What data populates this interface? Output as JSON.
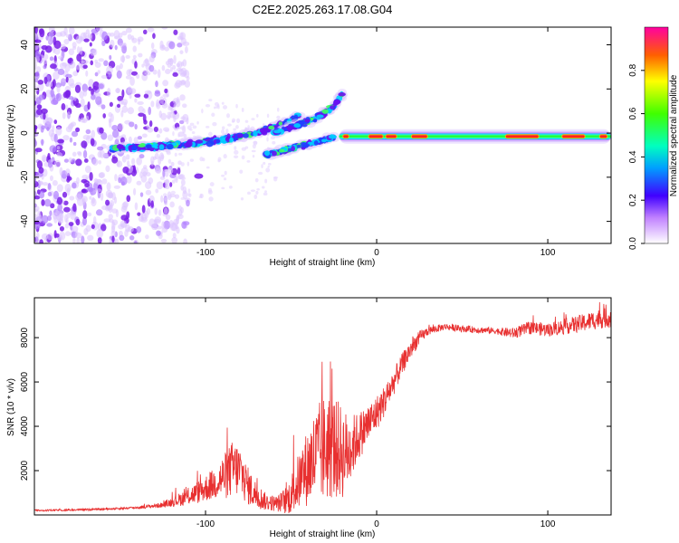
{
  "title": "C2E2.2025.263.17.08.G04",
  "chart_data": [
    {
      "type": "heatmap",
      "title": "C2E2.2025.263.17.08.G04",
      "xlabel": "Height of straight line (km)",
      "ylabel": "Frequency (Hz)",
      "xlim": [
        -200,
        137
      ],
      "ylim": [
        -50,
        48
      ],
      "xticks": [
        -100,
        0,
        100
      ],
      "yticks": [
        -40,
        -20,
        0,
        20,
        40
      ],
      "colorbar": {
        "label": "Normalized spectral amplitude",
        "range": [
          0,
          1
        ],
        "ticks": [
          0.0,
          0.2,
          0.4,
          0.6,
          0.8
        ]
      },
      "features": [
        {
          "name": "noise-cloud",
          "x_range": [
            -200,
            -125
          ],
          "y_range": [
            -50,
            48
          ]
        },
        {
          "name": "main-ridge",
          "x": [
            -155,
            -130,
            -110,
            -90,
            -70,
            -55,
            -45
          ],
          "y": [
            -7,
            -6,
            -5,
            -3,
            0,
            4,
            8
          ]
        },
        {
          "name": "upper-branch",
          "x": [
            -60,
            -45,
            -35,
            -25,
            -20
          ],
          "y": [
            0,
            4,
            7,
            12,
            18
          ]
        },
        {
          "name": "lower-branch",
          "x": [
            -65,
            -55,
            -45,
            -35,
            -25
          ],
          "y": [
            -10,
            -8,
            -6,
            -4,
            -2
          ]
        },
        {
          "name": "carrier-line",
          "x_range": [
            -22,
            137
          ],
          "y": -1.5
        }
      ]
    },
    {
      "type": "line",
      "xlabel": "Height of straight line (km)",
      "ylabel": "SNR (10 * v/v)",
      "xlim": [
        -200,
        137
      ],
      "ylim": [
        0,
        9800
      ],
      "xticks": [
        -100,
        0,
        100
      ],
      "yticks": [
        2000,
        4000,
        6000,
        8000
      ],
      "series": [
        {
          "name": "SNR",
          "color": "#e83030",
          "x": [
            -200,
            -180,
            -160,
            -140,
            -125,
            -115,
            -105,
            -95,
            -88,
            -84,
            -80,
            -76,
            -72,
            -65,
            -58,
            -52,
            -48,
            -44,
            -40,
            -36,
            -32,
            -28,
            -24,
            -20,
            -16,
            -12,
            -8,
            -4,
            0,
            5,
            10,
            15,
            20,
            25,
            30,
            40,
            50,
            60,
            70,
            80,
            90,
            100,
            110,
            120,
            130,
            137
          ],
          "y": [
            200,
            220,
            260,
            330,
            450,
            700,
            1000,
            1400,
            1800,
            2100,
            2000,
            1400,
            1000,
            600,
            500,
            700,
            1200,
            1700,
            2200,
            2600,
            2900,
            3100,
            3000,
            2800,
            2900,
            3400,
            3800,
            4200,
            4600,
            5200,
            6000,
            6800,
            7500,
            8000,
            8300,
            8500,
            8400,
            8350,
            8300,
            8200,
            8450,
            8350,
            8500,
            8650,
            8850,
            8900
          ],
          "noise": [
            40,
            40,
            40,
            60,
            120,
            300,
            500,
            700,
            1100,
            1300,
            1200,
            900,
            700,
            400,
            350,
            700,
            1100,
            1400,
            1800,
            2200,
            2400,
            2500,
            2300,
            2100,
            1600,
            1200,
            1000,
            900,
            800,
            700,
            600,
            500,
            450,
            300,
            200,
            150,
            150,
            150,
            150,
            250,
            300,
            300,
            350,
            400,
            450,
            450
          ]
        }
      ]
    }
  ]
}
